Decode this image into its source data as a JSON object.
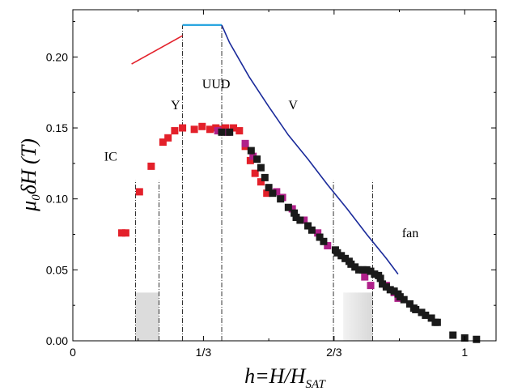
{
  "chart_data": {
    "type": "scatter",
    "xlabel": {
      "main": "h=H/H",
      "sub": "SAT"
    },
    "ylabel": {
      "main": "μ",
      "sub": "0",
      "rest": "δH (T)"
    },
    "xlim": [
      0,
      1.08
    ],
    "ylim": [
      0,
      0.2333
    ],
    "x_ticks": [
      {
        "value": 0,
        "label": "0"
      },
      {
        "value": 0.3333,
        "label": "1/3"
      },
      {
        "value": 0.6667,
        "label": "2/3"
      },
      {
        "value": 1.0,
        "label": "1"
      }
    ],
    "y_ticks": [
      {
        "value": 0.0,
        "label": "0.00"
      },
      {
        "value": 0.05,
        "label": "0.05"
      },
      {
        "value": 0.1,
        "label": "0.10"
      },
      {
        "value": 0.15,
        "label": "0.15"
      },
      {
        "value": 0.2,
        "label": "0.20"
      }
    ],
    "region_labels": [
      {
        "text": "IC",
        "x": 0.08,
        "y": 0.127
      },
      {
        "text": "Y",
        "x": 0.25,
        "y": 0.163
      },
      {
        "text": "UUD",
        "x": 0.33,
        "y": 0.178
      },
      {
        "text": "V",
        "x": 0.55,
        "y": 0.163
      },
      {
        "text": "fan",
        "x": 0.84,
        "y": 0.073
      }
    ],
    "series": [
      {
        "color": "#e3202a",
        "marker": "square",
        "points": [
          [
            0.125,
            0.076
          ],
          [
            0.135,
            0.076
          ],
          [
            0.17,
            0.105
          ],
          [
            0.2,
            0.123
          ],
          [
            0.23,
            0.14
          ],
          [
            0.243,
            0.143
          ],
          [
            0.26,
            0.148
          ],
          [
            0.28,
            0.15
          ],
          [
            0.31,
            0.149
          ],
          [
            0.33,
            0.151
          ],
          [
            0.35,
            0.149
          ],
          [
            0.365,
            0.15
          ],
          [
            0.38,
            0.149
          ],
          [
            0.39,
            0.15
          ],
          [
            0.41,
            0.15
          ],
          [
            0.425,
            0.148
          ],
          [
            0.44,
            0.137
          ],
          [
            0.453,
            0.127
          ],
          [
            0.465,
            0.118
          ],
          [
            0.48,
            0.112
          ],
          [
            0.495,
            0.104
          ]
        ]
      },
      {
        "color": "#b0208a",
        "marker": "square",
        "points": [
          [
            0.37,
            0.148
          ],
          [
            0.395,
            0.147
          ],
          [
            0.44,
            0.139
          ],
          [
            0.46,
            0.13
          ],
          [
            0.52,
            0.105
          ],
          [
            0.535,
            0.101
          ],
          [
            0.56,
            0.093
          ],
          [
            0.59,
            0.085
          ],
          [
            0.625,
            0.076
          ],
          [
            0.65,
            0.067
          ],
          [
            0.745,
            0.045
          ],
          [
            0.76,
            0.039
          ],
          [
            0.8,
            0.039
          ],
          [
            0.82,
            0.034
          ],
          [
            0.83,
            0.03
          ]
        ]
      },
      {
        "color": "#1a1a1a",
        "marker": "square",
        "points": [
          [
            0.38,
            0.147
          ],
          [
            0.4,
            0.147
          ],
          [
            0.455,
            0.134
          ],
          [
            0.47,
            0.128
          ],
          [
            0.48,
            0.122
          ],
          [
            0.49,
            0.115
          ],
          [
            0.5,
            0.108
          ],
          [
            0.51,
            0.104
          ],
          [
            0.53,
            0.1
          ],
          [
            0.55,
            0.094
          ],
          [
            0.565,
            0.09
          ],
          [
            0.57,
            0.087
          ],
          [
            0.58,
            0.085
          ],
          [
            0.6,
            0.081
          ],
          [
            0.61,
            0.078
          ],
          [
            0.63,
            0.073
          ],
          [
            0.64,
            0.07
          ],
          [
            0.67,
            0.064
          ],
          [
            0.675,
            0.062
          ],
          [
            0.685,
            0.06
          ],
          [
            0.695,
            0.058
          ],
          [
            0.705,
            0.056
          ],
          [
            0.71,
            0.054
          ],
          [
            0.72,
            0.052
          ],
          [
            0.73,
            0.05
          ],
          [
            0.74,
            0.05
          ],
          [
            0.75,
            0.05
          ],
          [
            0.76,
            0.049
          ],
          [
            0.77,
            0.047
          ],
          [
            0.78,
            0.046
          ],
          [
            0.785,
            0.044
          ],
          [
            0.79,
            0.04
          ],
          [
            0.8,
            0.038
          ],
          [
            0.81,
            0.036
          ],
          [
            0.82,
            0.035
          ],
          [
            0.83,
            0.033
          ],
          [
            0.835,
            0.031
          ],
          [
            0.845,
            0.029
          ],
          [
            0.86,
            0.026
          ],
          [
            0.87,
            0.023
          ],
          [
            0.875,
            0.022
          ],
          [
            0.89,
            0.02
          ],
          [
            0.9,
            0.018
          ],
          [
            0.915,
            0.016
          ],
          [
            0.925,
            0.013
          ],
          [
            0.93,
            0.013
          ],
          [
            0.97,
            0.004
          ],
          [
            1.0,
            0.002
          ],
          [
            1.03,
            0.001
          ]
        ]
      }
    ],
    "lines": [
      {
        "color": "#e3202a",
        "points": [
          [
            0.15,
            0.195
          ],
          [
            0.28,
            0.215
          ]
        ]
      },
      {
        "color": "#2aa6e0",
        "points": [
          [
            0.28,
            0.2225
          ],
          [
            0.38,
            0.2225
          ]
        ]
      },
      {
        "color": "#1a2a9a",
        "points": [
          [
            0.38,
            0.2225
          ],
          [
            0.4,
            0.21
          ],
          [
            0.45,
            0.186
          ],
          [
            0.5,
            0.165
          ],
          [
            0.55,
            0.145
          ],
          [
            0.6,
            0.128
          ],
          [
            0.65,
            0.11
          ],
          [
            0.7,
            0.093
          ],
          [
            0.75,
            0.075
          ],
          [
            0.8,
            0.058
          ],
          [
            0.83,
            0.047
          ]
        ]
      }
    ],
    "phase_boundaries": [
      0.16,
      0.22,
      0.28,
      0.38,
      0.665,
      0.765
    ],
    "shaded_regions": [
      {
        "x0": 0.16,
        "x1": 0.22,
        "y0": 0.0,
        "y1": 0.034
      },
      {
        "x0": 0.69,
        "x1": 0.765,
        "y0": 0.0,
        "y1": 0.034
      }
    ]
  }
}
